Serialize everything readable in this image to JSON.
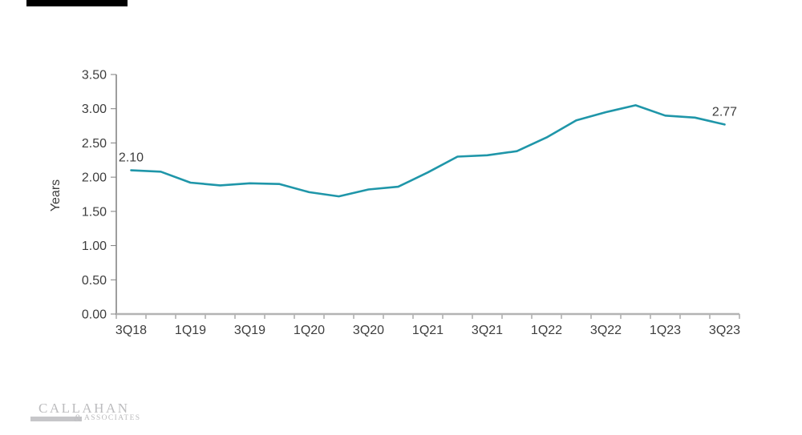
{
  "decorations": {
    "redacted_title_bar_color": "#000000"
  },
  "chart_data": {
    "type": "line",
    "title": "",
    "ylabel": "Years",
    "xlabel": "",
    "ylim": [
      0,
      3.5
    ],
    "y_tick_step": 0.5,
    "y_tick_labels": [
      "0.00",
      "0.50",
      "1.00",
      "1.50",
      "2.00",
      "2.50",
      "3.00",
      "3.50"
    ],
    "categories": [
      "3Q18",
      "4Q18",
      "1Q19",
      "2Q19",
      "3Q19",
      "4Q19",
      "1Q20",
      "2Q20",
      "3Q20",
      "4Q20",
      "1Q21",
      "2Q21",
      "3Q21",
      "4Q21",
      "1Q22",
      "2Q22",
      "3Q22",
      "4Q22",
      "1Q23",
      "2Q23",
      "3Q23"
    ],
    "x_axis_labels": [
      "3Q18",
      "1Q19",
      "3Q19",
      "1Q20",
      "3Q20",
      "1Q21",
      "3Q21",
      "1Q22",
      "3Q22",
      "1Q23",
      "3Q23"
    ],
    "series": [
      {
        "name": "Years",
        "values": [
          2.1,
          2.08,
          1.92,
          1.88,
          1.91,
          1.9,
          1.78,
          1.72,
          1.82,
          1.86,
          2.07,
          2.3,
          2.32,
          2.38,
          2.58,
          2.83,
          2.95,
          3.05,
          2.9,
          2.87,
          2.77
        ]
      }
    ],
    "point_labels": [
      {
        "category": "3Q18",
        "label": "2.10"
      },
      {
        "category": "3Q23",
        "label": "2.77"
      }
    ],
    "grid": false,
    "legend_position": "none",
    "line_color": "#1f96a9",
    "axis_color": "#7f7f7f",
    "baseline_color": "#b3b3b3",
    "text_color": "#3d3d3d"
  },
  "footer": {
    "logo": {
      "primary": "CALLAHAN",
      "ampersand": "&",
      "secondary": "ASSOCIATES",
      "color": "#bcbcbe"
    }
  }
}
